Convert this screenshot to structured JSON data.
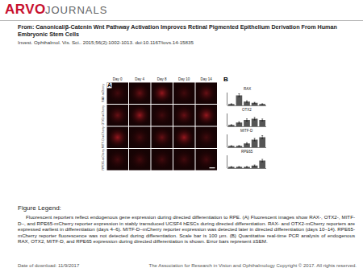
{
  "header": {
    "logo_main": "ARVO",
    "logo_sub": "JOURNALS",
    "from": "From: Canonical/β-Catenin Wnt Pathway Activation Improves Retinal Pigmented Epithelium Derivation From Human Embryonic Stem Cells",
    "citation": "Invest. Ophthalmol. Vis. Sci.. 2015;56(2):1002-1013. doi:10.1167/iovs.14-15835"
  },
  "figure": {
    "panel_a": {
      "label": "A",
      "columns": [
        "Day 0",
        "Day 4",
        "Day 8",
        "Day 10",
        "Day 14"
      ],
      "rows": [
        "RAX-mCherry",
        "OTX2-mCherry",
        "MITF-D-mCherry",
        "RPE65-mCherry"
      ]
    },
    "panel_b": {
      "label": "B"
    }
  },
  "chart_data": [
    {
      "type": "bar",
      "title": "RAX",
      "categories": [
        null,
        null,
        null,
        null,
        null
      ],
      "values": [
        1,
        8,
        3,
        2,
        1
      ],
      "errors": [
        0.3,
        1.2,
        0.6,
        0.4,
        0.3
      ],
      "ylim": [
        0,
        10
      ],
      "tick_labels": false,
      "color": "#555555"
    },
    {
      "type": "bar",
      "title": "OTX2",
      "categories": [
        null,
        null,
        null,
        null,
        null
      ],
      "values": [
        1,
        3,
        5,
        6,
        5
      ],
      "errors": [
        0.3,
        0.6,
        0.9,
        1,
        0.8
      ],
      "ylim": [
        0,
        10
      ],
      "tick_labels": false,
      "color": "#555555"
    },
    {
      "type": "bar",
      "title": "MITF-D",
      "categories": [
        null,
        null,
        null,
        null,
        null
      ],
      "values": [
        1,
        1,
        3,
        6,
        8
      ],
      "errors": [
        0.2,
        0.3,
        0.6,
        1,
        1.2
      ],
      "ylim": [
        0,
        10
      ],
      "tick_labels": false,
      "color": "#555555"
    },
    {
      "type": "bar",
      "title": "RPE65",
      "categories": [
        null,
        null,
        null,
        null,
        null
      ],
      "values": [
        1,
        1,
        1,
        2,
        6
      ],
      "errors": [
        0.2,
        0.2,
        0.3,
        0.5,
        1
      ],
      "ylim": [
        0,
        10
      ],
      "tick_labels": false,
      "color": "#555555"
    }
  ],
  "legend": {
    "heading": "Figure Legend:",
    "text": "Fluorescent reporters reflect endogenous gene expression during directed differentiation to RPE. (A) Fluorescent images show RAX-, OTX2-, MITF-D–, and RPE65-mCherry reporter expression in stably transduced UCSF4 hESCs during directed differentiation. RAX- and OTX2-mCherry reporters are expressed earliest in differentiation (days 4–6). MITF-D–mCherry reporter expression was detected later in directed differentiation (days 10–14). RPE65-mCherry reporter fluorescence was not detected during differentiation. Scale bar is 100 μm. (B) Quantitative real-time PCR analysis of endogenous RAX, OTX2, MITF-D, and RPE65 expression during directed differentiation is shown. Error bars represent ±SEM."
  },
  "footer": {
    "date": "Date of download: 11/9/2017",
    "copyright": "The Association for Research in Vision and Ophthalmology Copyright © 2017. All rights reserved."
  }
}
